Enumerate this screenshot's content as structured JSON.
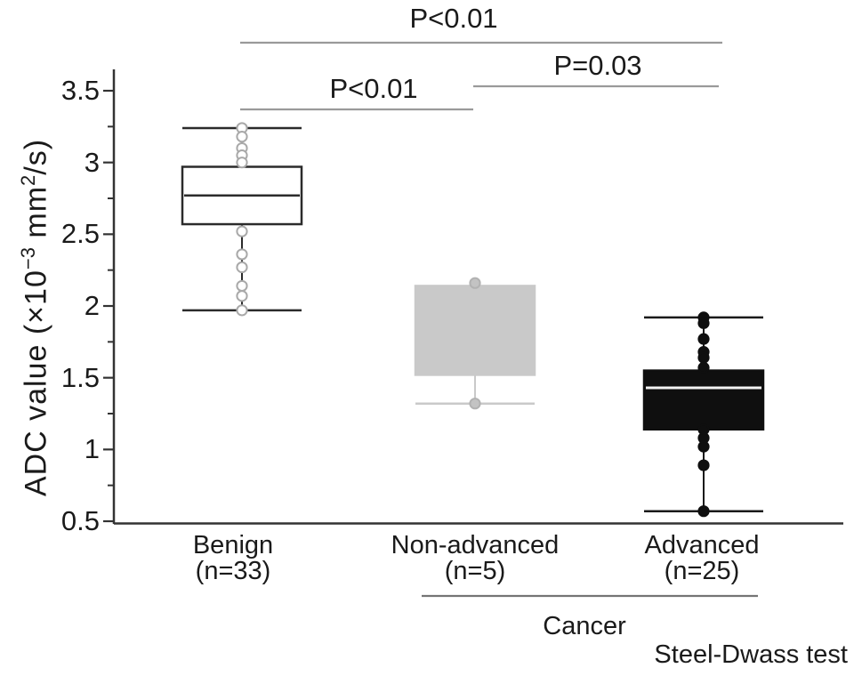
{
  "chart_data": {
    "type": "box",
    "title": "",
    "yaxis": {
      "label": "ADC value (×10⁻³ mm²/s)",
      "label_parts": [
        "ADC value (×10",
        "−3",
        " mm",
        "2",
        "/s)"
      ],
      "range": [
        0.5,
        3.6
      ],
      "ticks": [
        {
          "value": 3.5,
          "label": "3.5"
        },
        {
          "value": 3.0,
          "label": "3"
        },
        {
          "value": 2.5,
          "label": "2.5"
        },
        {
          "value": 2.0,
          "label": "2"
        },
        {
          "value": 1.5,
          "label": "1.5"
        },
        {
          "value": 1.0,
          "label": "1"
        },
        {
          "value": 0.5,
          "label": "0.5"
        }
      ],
      "minor_ticks": [
        3.25,
        2.75,
        2.25,
        1.75,
        1.25,
        0.75
      ],
      "grid": false
    },
    "groups": [
      {
        "label": "Benign",
        "n_label": "(n=33)",
        "stats": {
          "whisker_low": 1.97,
          "q1": 2.57,
          "median": 2.77,
          "q3": 2.97,
          "whisker_high": 3.24
        },
        "points": [
          3.24,
          3.18,
          3.1,
          3.05,
          3.0,
          2.52,
          2.36,
          2.27,
          2.14,
          2.07,
          1.97
        ],
        "style": {
          "box_fill": "#ffffff",
          "box_stroke": "#2b2b2b",
          "median": "#2b2b2b",
          "whisker": "#2b2b2b",
          "point_fill": "#ffffff",
          "point_stroke": "#a9a9a9"
        }
      },
      {
        "label": "Non-advanced",
        "n_label": "(n=5)",
        "stats": {
          "whisker_low": 1.32,
          "q1": 1.52,
          "median": null,
          "q3": 2.14,
          "whisker_high": 2.14
        },
        "points": [
          2.16,
          1.32
        ],
        "style": {
          "box_fill": "#c9c9c9",
          "box_stroke": "#c9c9c9",
          "median": null,
          "whisker": "#c9c9c9",
          "point_fill": "#c3c3c3",
          "point_stroke": "#b2b2b2"
        }
      },
      {
        "label": "Advanced",
        "n_label": "(n=25)",
        "stats": {
          "whisker_low": 0.57,
          "q1": 1.14,
          "median": 1.43,
          "q3": 1.55,
          "whisker_high": 1.92
        },
        "points": [
          1.92,
          1.88,
          1.77,
          1.68,
          1.64,
          1.57,
          1.14,
          1.08,
          1.02,
          0.89,
          0.57
        ],
        "style": {
          "box_fill": "#0f0f0f",
          "box_stroke": "#0f0f0f",
          "median": "#f2f2f2",
          "whisker": "#1a1a1a",
          "point_fill": "#0f0f0f",
          "point_stroke": "#0f0f0f"
        }
      }
    ],
    "significance": [
      {
        "label": "P<0.01",
        "between": [
          "Benign",
          "Advanced"
        ]
      },
      {
        "label": "P=0.03",
        "between": [
          "Non-advanced",
          "Advanced"
        ]
      },
      {
        "label": "P<0.01",
        "between": [
          "Benign",
          "Non-advanced"
        ]
      }
    ],
    "footer": {
      "group_bracket_label": "Cancer",
      "test_label": "Steel-Dwass test"
    },
    "colors": {
      "axis": "#333333",
      "text": "#1a1a1a",
      "sig_line": "#9a9a9a",
      "bracket_line": "#757575"
    }
  }
}
